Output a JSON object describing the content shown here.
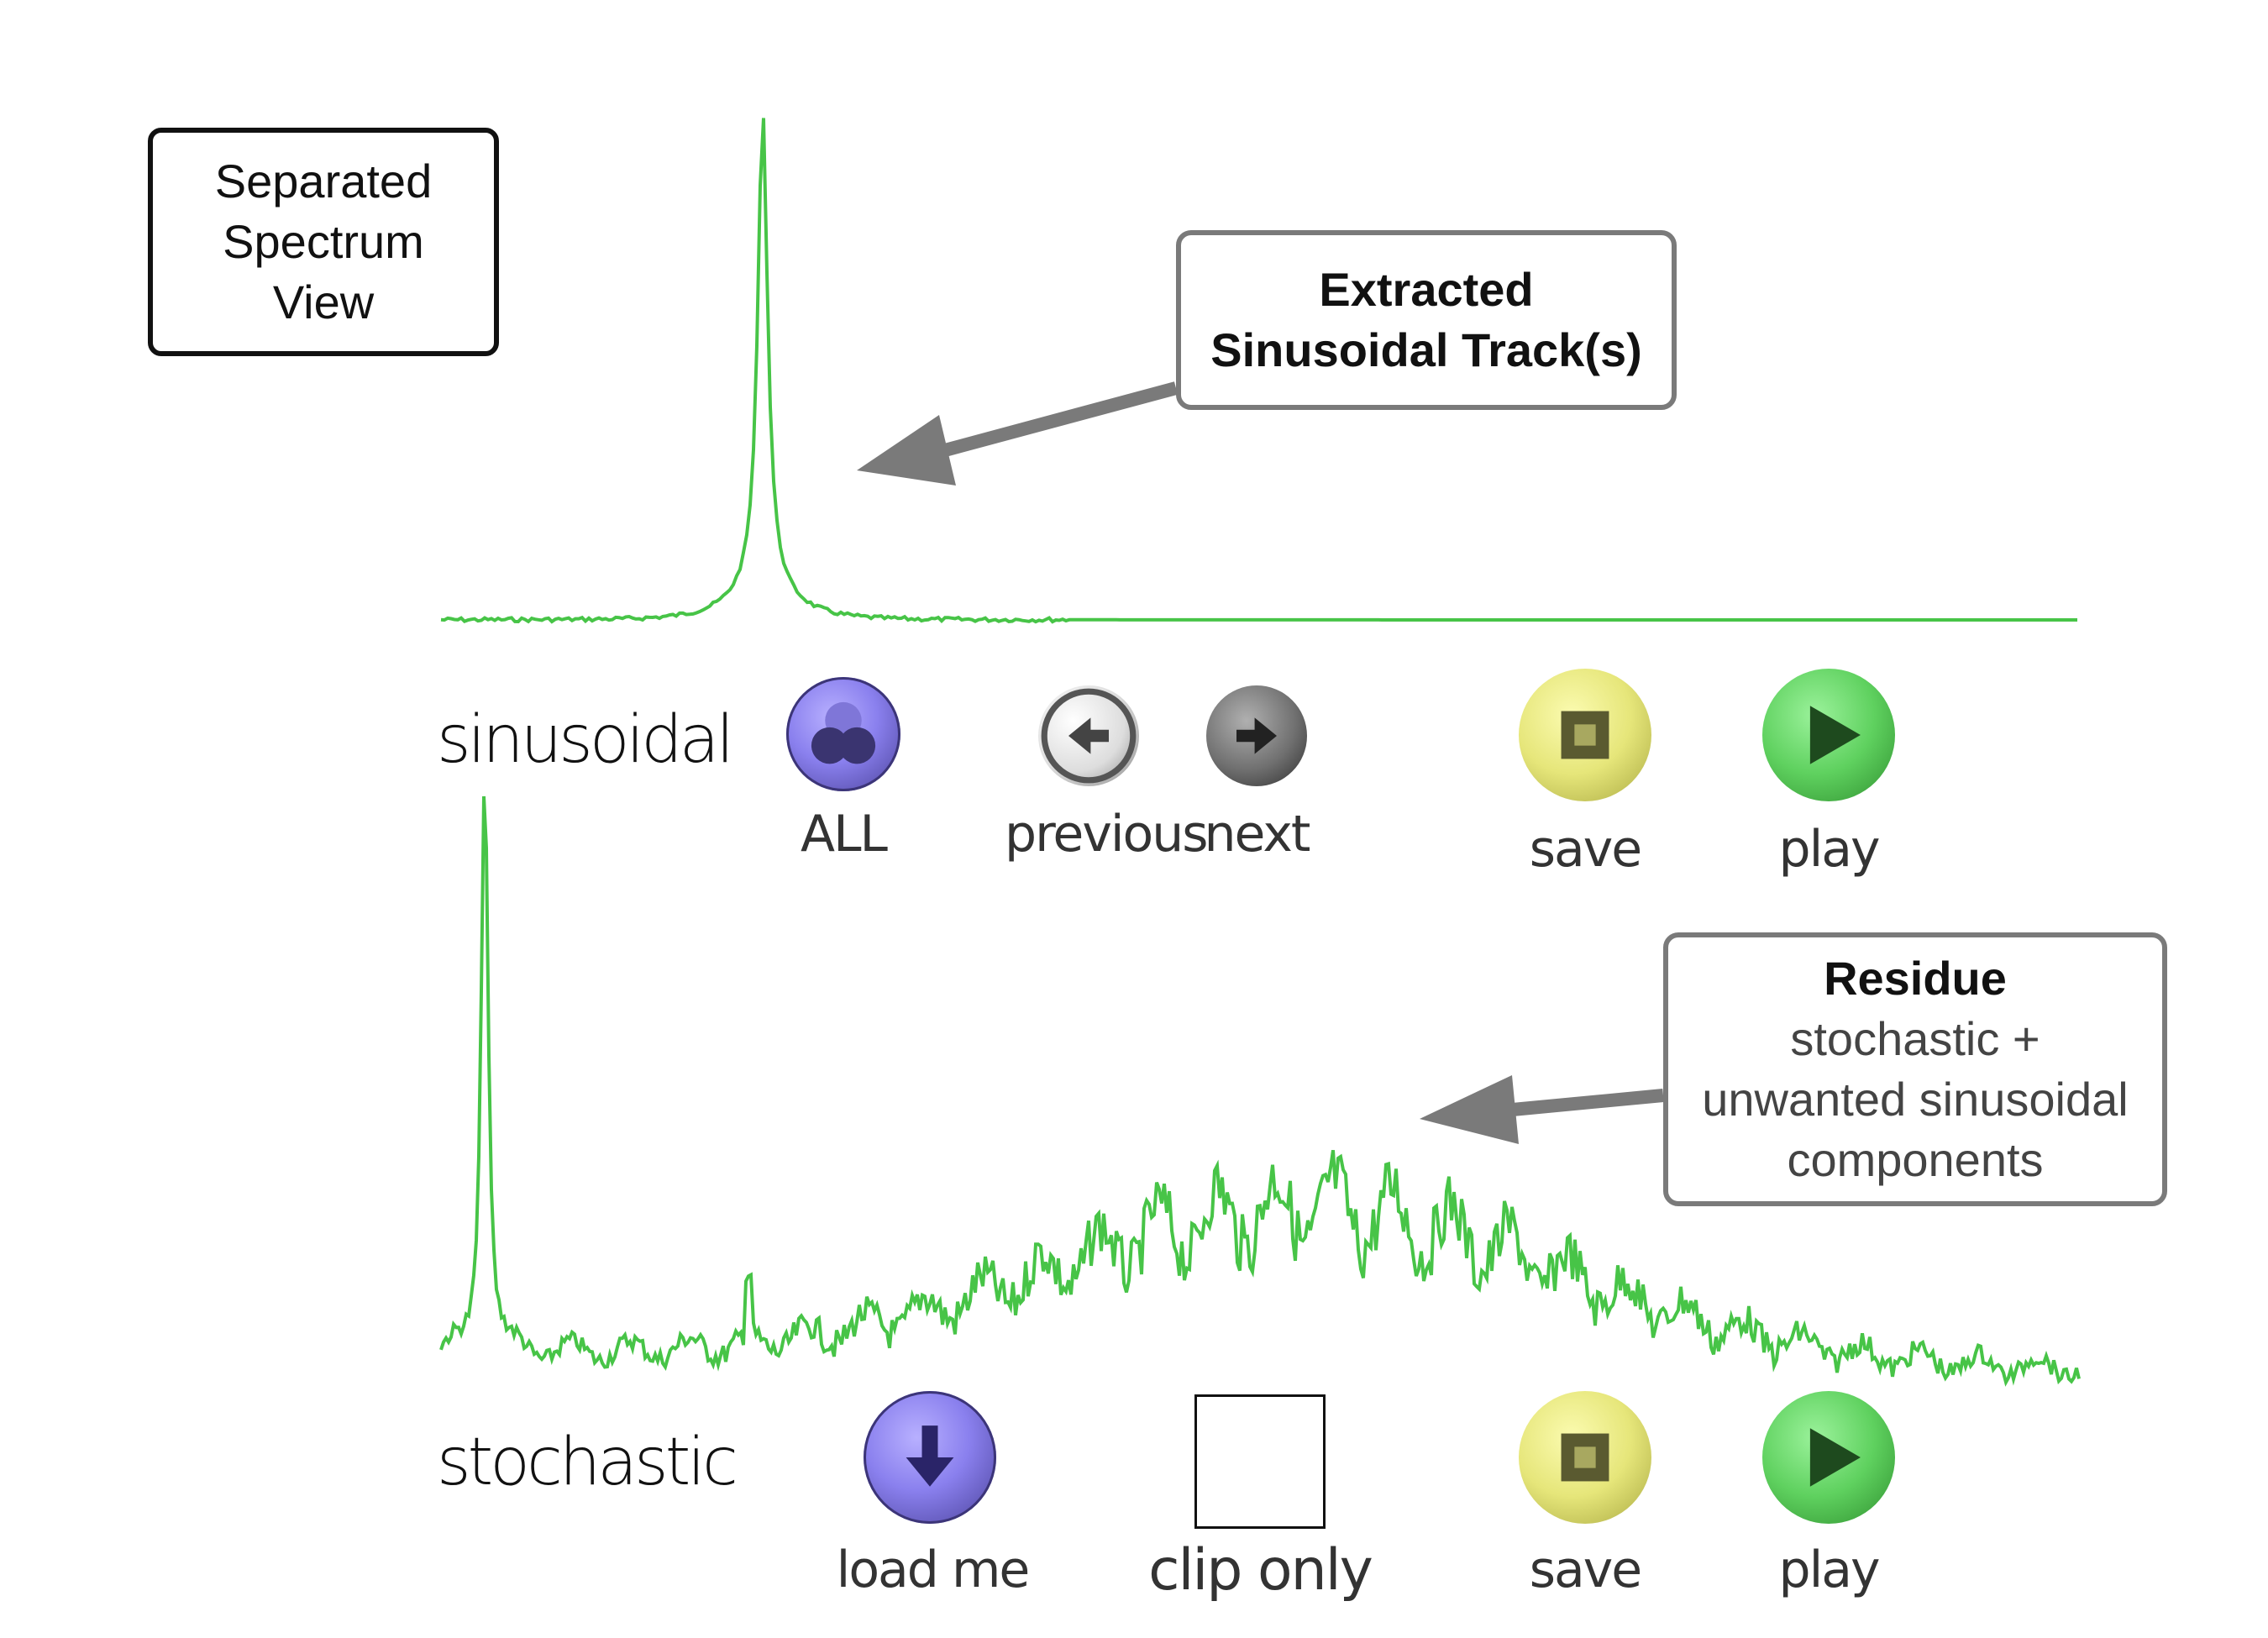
{
  "title_box": {
    "lines": [
      "Separated",
      "Spectrum",
      "View"
    ]
  },
  "sinusoidal_callout": {
    "lines": [
      "Extracted",
      "Sinusoidal Track(s)"
    ]
  },
  "residue_callout": {
    "heading": "Residue",
    "lines": [
      "stochastic +",
      "unwanted sinusoidal",
      "components"
    ]
  },
  "sinusoidal_row": {
    "label": "sinusoidal",
    "buttons": {
      "all": {
        "label": "ALL",
        "icon": "circles-icon"
      },
      "previous": {
        "label": "previous",
        "icon": "arrow-left-icon"
      },
      "next": {
        "label": "next",
        "icon": "arrow-right-icon"
      },
      "save": {
        "label": "save",
        "icon": "square-icon"
      },
      "play": {
        "label": "play",
        "icon": "play-icon"
      }
    }
  },
  "stochastic_row": {
    "label": "stochastic",
    "buttons": {
      "load": {
        "label": "load   me",
        "icon": "arrow-down-icon"
      },
      "clip": {
        "label": "clip   only"
      },
      "save": {
        "label": "save",
        "icon": "square-icon"
      },
      "play": {
        "label": "play",
        "icon": "play-icon"
      }
    }
  },
  "colors": {
    "spectrum": "#47c447",
    "arrow": "#7a7a7a",
    "purple_button": "#8a80ee",
    "yellow_button": "#e6e67a",
    "green_button": "#5fd15f"
  }
}
